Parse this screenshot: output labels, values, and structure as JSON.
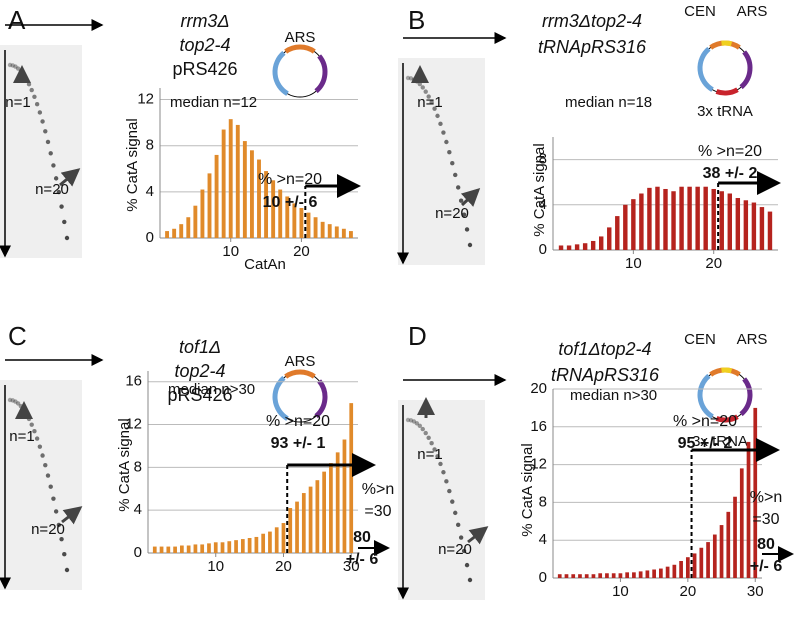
{
  "chart_data": [
    {
      "type": "bar",
      "panel": "A",
      "title_lines": [
        "rrm3Δ",
        "top2-4",
        "pRS426"
      ],
      "plasmid_labels": [
        "ARS"
      ],
      "gel_labels": [
        "n=1",
        "n=20"
      ],
      "median": "median n=12",
      "ylabel": "% CatA signal",
      "xlabel": "CatAn",
      "annotations": [
        "% >n=20",
        "10 +/- 6"
      ],
      "color": "#e08a2a",
      "grid": true,
      "x": [
        1,
        2,
        3,
        4,
        5,
        6,
        7,
        8,
        9,
        10,
        11,
        12,
        13,
        14,
        15,
        16,
        17,
        18,
        19,
        20,
        21,
        22,
        23,
        24,
        25,
        26,
        27
      ],
      "values": [
        0.6,
        0.8,
        1.2,
        1.8,
        2.8,
        4.2,
        5.6,
        7.2,
        9.4,
        10.3,
        9.8,
        8.4,
        7.6,
        6.8,
        5.8,
        5.0,
        4.2,
        3.6,
        3.0,
        2.6,
        2.2,
        1.8,
        1.4,
        1.2,
        1.0,
        0.8,
        0.6
      ],
      "xlim": [
        0,
        28
      ],
      "xticks": [
        10,
        20
      ],
      "ylim": [
        0,
        13
      ],
      "yticks": [
        0,
        4,
        8,
        12
      ]
    },
    {
      "type": "bar",
      "panel": "B",
      "title_lines": [
        "rrm3Δtop2-4",
        "tRNApRS316"
      ],
      "plasmid_labels": [
        "CEN",
        "ARS",
        "3x tRNA"
      ],
      "gel_labels": [
        "n=1",
        "n=20"
      ],
      "median": "median n=18",
      "ylabel": "% CatA signal",
      "annotations": [
        "% >n=20",
        "38 +/- 2"
      ],
      "color": "#b5231e",
      "grid": true,
      "x": [
        1,
        2,
        3,
        4,
        5,
        6,
        7,
        8,
        9,
        10,
        11,
        12,
        13,
        14,
        15,
        16,
        17,
        18,
        19,
        20,
        21,
        22,
        23,
        24,
        25,
        26,
        27
      ],
      "values": [
        0.4,
        0.4,
        0.5,
        0.6,
        0.8,
        1.2,
        2.0,
        3.0,
        4.0,
        4.5,
        5.0,
        5.5,
        5.6,
        5.4,
        5.2,
        5.6,
        5.6,
        5.6,
        5.6,
        5.4,
        5.2,
        5.0,
        4.6,
        4.4,
        4.2,
        3.8,
        3.4
      ],
      "xlim": [
        0,
        28
      ],
      "xticks": [
        10,
        20
      ],
      "ylim": [
        0,
        10
      ],
      "yticks": [
        0,
        4,
        8
      ]
    },
    {
      "type": "bar",
      "panel": "C",
      "title_lines": [
        "tof1Δ",
        "top2-4",
        "pRS426"
      ],
      "plasmid_labels": [
        "ARS"
      ],
      "gel_labels": [
        "n=1",
        "n=20"
      ],
      "median": "median n>30",
      "ylabel": "% CatA signal",
      "annotations": [
        "% >n=20",
        "93 +/- 1",
        "%>n",
        "=30",
        "80",
        "+/- 6"
      ],
      "color": "#e08a2a",
      "grid": true,
      "x": [
        1,
        2,
        3,
        4,
        5,
        6,
        7,
        8,
        9,
        10,
        11,
        12,
        13,
        14,
        15,
        16,
        17,
        18,
        19,
        20,
        21,
        22,
        23,
        24,
        25,
        26,
        27,
        28,
        29,
        30
      ],
      "values": [
        0.6,
        0.6,
        0.6,
        0.6,
        0.7,
        0.7,
        0.8,
        0.8,
        0.9,
        1.0,
        1.0,
        1.1,
        1.2,
        1.3,
        1.4,
        1.5,
        1.8,
        2.0,
        2.4,
        2.8,
        4.2,
        4.8,
        5.6,
        6.2,
        6.8,
        7.6,
        8.4,
        9.4,
        10.6,
        14
      ],
      "xlim": [
        0,
        31
      ],
      "xticks": [
        10,
        20,
        30
      ],
      "ylim": [
        0,
        17
      ],
      "yticks": [
        0,
        4,
        8,
        12,
        16
      ]
    },
    {
      "type": "bar",
      "panel": "D",
      "title_lines": [
        "tof1Δtop2-4",
        "tRNApRS316"
      ],
      "plasmid_labels": [
        "CEN",
        "ARS",
        "3x tRNA"
      ],
      "gel_labels": [
        "n=1",
        "n=20"
      ],
      "median": "median n>30",
      "ylabel": "% CatA signal",
      "annotations": [
        "% >n=20",
        "95 +/- 2",
        "%>n",
        "=30",
        "80",
        "+/- 6"
      ],
      "color": "#b5231e",
      "grid": true,
      "x": [
        1,
        2,
        3,
        4,
        5,
        6,
        7,
        8,
        9,
        10,
        11,
        12,
        13,
        14,
        15,
        16,
        17,
        18,
        19,
        20,
        21,
        22,
        23,
        24,
        25,
        26,
        27,
        28,
        29,
        30
      ],
      "values": [
        0.4,
        0.4,
        0.4,
        0.4,
        0.4,
        0.4,
        0.5,
        0.5,
        0.5,
        0.5,
        0.6,
        0.6,
        0.7,
        0.8,
        0.9,
        1.0,
        1.2,
        1.4,
        1.8,
        2.2,
        2.6,
        3.2,
        3.8,
        4.6,
        5.6,
        7.0,
        8.6,
        11.6,
        14.4,
        18
      ],
      "xlim": [
        0,
        31
      ],
      "xticks": [
        10,
        20,
        30
      ],
      "ylim": [
        0,
        20
      ],
      "yticks": [
        0,
        4,
        8,
        12,
        16,
        20
      ]
    }
  ]
}
